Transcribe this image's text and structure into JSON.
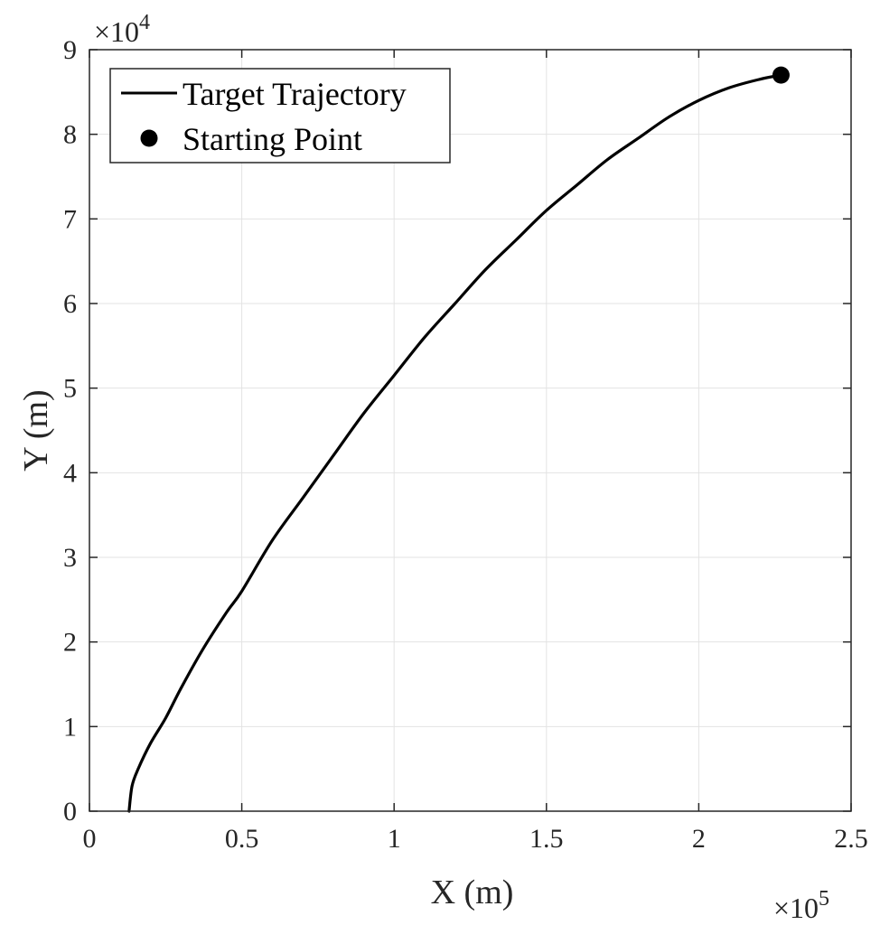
{
  "chart_data": {
    "type": "line",
    "title": "",
    "xlabel": "X (m)",
    "ylabel": "Y (m)",
    "x_multiplier": "×10",
    "x_multiplier_exp": "5",
    "y_multiplier": "×10",
    "y_multiplier_exp": "4",
    "xlim": [
      0,
      2.5
    ],
    "ylim": [
      0,
      9
    ],
    "xticks": [
      0,
      0.5,
      1,
      1.5,
      2,
      2.5
    ],
    "xtick_labels": [
      "0",
      "0.5",
      "1",
      "1.5",
      "2",
      "2.5"
    ],
    "yticks": [
      0,
      1,
      2,
      3,
      4,
      5,
      6,
      7,
      8,
      9
    ],
    "ytick_labels": [
      "0",
      "1",
      "2",
      "3",
      "4",
      "5",
      "6",
      "7",
      "8",
      "9"
    ],
    "grid": true,
    "legend_position": "top-left",
    "series": [
      {
        "name": "Target Trajectory",
        "kind": "line",
        "color": "#000000",
        "x": [
          0.13,
          0.14,
          0.16,
          0.2,
          0.25,
          0.3,
          0.37,
          0.45,
          0.5,
          0.6,
          0.7,
          0.8,
          0.9,
          1.0,
          1.1,
          1.2,
          1.3,
          1.4,
          1.5,
          1.6,
          1.7,
          1.8,
          1.9,
          2.0,
          2.1,
          2.2,
          2.27
        ],
        "y": [
          0,
          0.3,
          0.5,
          0.8,
          1.1,
          1.45,
          1.9,
          2.35,
          2.6,
          3.2,
          3.7,
          4.2,
          4.7,
          5.15,
          5.6,
          6.0,
          6.4,
          6.75,
          7.1,
          7.4,
          7.7,
          7.95,
          8.2,
          8.4,
          8.55,
          8.65,
          8.7
        ]
      },
      {
        "name": "Starting Point",
        "kind": "marker",
        "color": "#000000",
        "x": [
          2.27
        ],
        "y": [
          8.7
        ]
      }
    ]
  }
}
